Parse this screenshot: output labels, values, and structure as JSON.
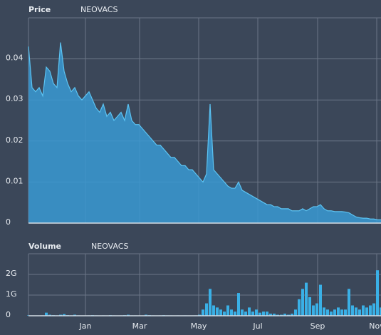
{
  "chart_data": [
    {
      "type": "area",
      "title": "Price",
      "subtitle": "NEOVACS",
      "color": "#3a9ad3",
      "line_color": "#5cc3f2",
      "ylim": [
        0,
        0.05
      ],
      "yticks": [
        0,
        0.01,
        0.02,
        0.03,
        0.04
      ],
      "xlim": [
        0,
        99
      ],
      "grid": true,
      "xticks": [
        16,
        31.2,
        47.8,
        64.4,
        81.2,
        97.8
      ],
      "values": [
        0.043,
        0.033,
        0.032,
        0.033,
        0.031,
        0.038,
        0.037,
        0.034,
        0.033,
        0.044,
        0.037,
        0.034,
        0.032,
        0.033,
        0.031,
        0.03,
        0.031,
        0.032,
        0.03,
        0.028,
        0.027,
        0.029,
        0.026,
        0.027,
        0.025,
        0.026,
        0.027,
        0.025,
        0.029,
        0.025,
        0.024,
        0.024,
        0.023,
        0.022,
        0.021,
        0.02,
        0.019,
        0.019,
        0.018,
        0.017,
        0.016,
        0.016,
        0.015,
        0.014,
        0.014,
        0.013,
        0.013,
        0.012,
        0.011,
        0.01,
        0.012,
        0.029,
        0.013,
        0.012,
        0.011,
        0.01,
        0.009,
        0.0085,
        0.0085,
        0.01,
        0.008,
        0.0075,
        0.007,
        0.0065,
        0.006,
        0.0055,
        0.005,
        0.0045,
        0.0045,
        0.004,
        0.004,
        0.0035,
        0.0035,
        0.0035,
        0.003,
        0.003,
        0.003,
        0.0035,
        0.003,
        0.0035,
        0.004,
        0.004,
        0.0045,
        0.0035,
        0.003,
        0.003,
        0.0028,
        0.0028,
        0.0028,
        0.0027,
        0.0025,
        0.002,
        0.0015,
        0.0013,
        0.0012,
        0.0012,
        0.001,
        0.001,
        0.0008,
        0.0008
      ]
    },
    {
      "type": "bar",
      "title": "Volume",
      "subtitle": "NEOVACS",
      "color": "#3ab0e6",
      "ylim": [
        0,
        3000000000
      ],
      "yticks": [
        0,
        {
          "value": 1000000000,
          "label": "1G"
        },
        {
          "value": 2000000000,
          "label": "2G"
        }
      ],
      "xlim": [
        0,
        99
      ],
      "grid": true,
      "xticks": [
        {
          "value": 16,
          "label": "Jan"
        },
        {
          "value": 31.2,
          "label": "Mar"
        },
        {
          "value": 47.8,
          "label": "May"
        },
        {
          "value": 64.4,
          "label": "Jul"
        },
        {
          "value": 81.2,
          "label": "Sep"
        },
        {
          "value": 97.8,
          "label": "Nov"
        }
      ],
      "values": [
        20000000.0,
        10000000.0,
        10000000.0,
        10000000.0,
        20000000.0,
        150000000.0,
        50000000.0,
        30000000.0,
        20000000.0,
        50000000.0,
        80000000.0,
        30000000.0,
        20000000.0,
        50000000.0,
        20000000.0,
        10000000.0,
        10000000.0,
        20000000.0,
        30000000.0,
        20000000.0,
        10000000.0,
        20000000.0,
        10000000.0,
        30000000.0,
        20000000.0,
        10000000.0,
        20000000.0,
        30000000.0,
        50000000.0,
        20000000.0,
        20000000.0,
        10000000.0,
        10000000.0,
        50000000.0,
        30000000.0,
        20000000.0,
        10000000.0,
        20000000.0,
        30000000.0,
        20000000.0,
        20000000.0,
        10000000.0,
        20000000.0,
        10000000.0,
        20000000.0,
        10000000.0,
        10000000.0,
        20000000.0,
        50000000.0,
        300000000.0,
        600000000.0,
        1300000000.0,
        500000000.0,
        400000000.0,
        300000000.0,
        200000000.0,
        500000000.0,
        300000000.0,
        200000000.0,
        1100000000.0,
        300000000.0,
        200000000.0,
        400000000.0,
        200000000.0,
        300000000.0,
        150000000.0,
        200000000.0,
        200000000.0,
        100000000.0,
        100000000.0,
        50000000.0,
        50000000.0,
        100000000.0,
        50000000.0,
        100000000.0,
        300000000.0,
        800000000.0,
        1300000000.0,
        1600000000.0,
        900000000.0,
        500000000.0,
        600000000.0,
        1500000000.0,
        400000000.0,
        300000000.0,
        200000000.0,
        300000000.0,
        400000000.0,
        300000000.0,
        300000000.0,
        1300000000.0,
        500000000.0,
        400000000.0,
        300000000.0,
        500000000.0,
        400000000.0,
        500000000.0,
        600000000.0,
        2200000000.0,
        400000000.0
      ]
    }
  ]
}
